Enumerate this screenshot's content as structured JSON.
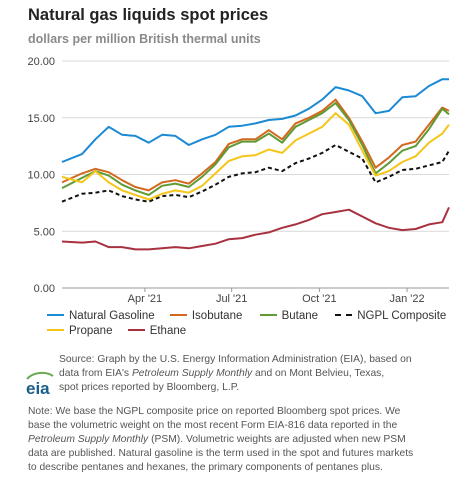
{
  "title": "Natural gas liquids spot prices",
  "subtitle": "dollars per million British thermal units",
  "chart_data": {
    "type": "line",
    "title": "Natural gas liquids spot prices",
    "ylabel": "dollars per million British thermal units",
    "xlabel": "",
    "ylim": [
      0,
      20
    ],
    "xlim": [
      "2021-01-04",
      "2022-02-14"
    ],
    "yticks": [
      "0.00",
      "5.00",
      "10.00",
      "15.00",
      "20.00"
    ],
    "xticks": [
      {
        "date": "2021-04-01",
        "label": "Apr '21"
      },
      {
        "date": "2021-07-01",
        "label": "Jul '21"
      },
      {
        "date": "2021-10-01",
        "label": "Oct '21"
      },
      {
        "date": "2022-01-01",
        "label": "Jan '22"
      }
    ],
    "grid": "horizontal",
    "legend_position": "bottom",
    "series": [
      {
        "name": "Natural Gasoline",
        "color": "#1a8ad4",
        "dash": false,
        "points": [
          [
            "2021-01-04",
            11.1
          ],
          [
            "2021-01-25",
            11.8
          ],
          [
            "2021-02-08",
            13.1
          ],
          [
            "2021-02-22",
            14.2
          ],
          [
            "2021-03-08",
            13.5
          ],
          [
            "2021-03-22",
            13.4
          ],
          [
            "2021-04-05",
            12.8
          ],
          [
            "2021-04-19",
            13.5
          ],
          [
            "2021-05-03",
            13.4
          ],
          [
            "2021-05-17",
            12.6
          ],
          [
            "2021-05-31",
            13.1
          ],
          [
            "2021-06-14",
            13.5
          ],
          [
            "2021-06-28",
            14.2
          ],
          [
            "2021-07-12",
            14.3
          ],
          [
            "2021-07-26",
            14.5
          ],
          [
            "2021-08-09",
            14.8
          ],
          [
            "2021-08-23",
            14.9
          ],
          [
            "2021-09-06",
            15.2
          ],
          [
            "2021-09-20",
            15.8
          ],
          [
            "2021-10-04",
            16.6
          ],
          [
            "2021-10-18",
            17.7
          ],
          [
            "2021-11-01",
            17.4
          ],
          [
            "2021-11-15",
            16.9
          ],
          [
            "2021-11-29",
            15.4
          ],
          [
            "2021-12-13",
            15.6
          ],
          [
            "2021-12-27",
            16.8
          ],
          [
            "2022-01-10",
            16.9
          ],
          [
            "2022-01-24",
            17.8
          ],
          [
            "2022-02-07",
            18.4
          ],
          [
            "2022-02-14",
            18.4
          ]
        ]
      },
      {
        "name": "Isobutane",
        "color": "#d2691e",
        "dash": false,
        "points": [
          [
            "2021-01-04",
            9.3
          ],
          [
            "2021-01-25",
            10.1
          ],
          [
            "2021-02-08",
            10.5
          ],
          [
            "2021-02-22",
            10.2
          ],
          [
            "2021-03-08",
            9.5
          ],
          [
            "2021-03-22",
            8.9
          ],
          [
            "2021-04-05",
            8.6
          ],
          [
            "2021-04-19",
            9.3
          ],
          [
            "2021-05-03",
            9.5
          ],
          [
            "2021-05-17",
            9.2
          ],
          [
            "2021-05-31",
            10.1
          ],
          [
            "2021-06-14",
            11.1
          ],
          [
            "2021-06-28",
            12.7
          ],
          [
            "2021-07-12",
            13.1
          ],
          [
            "2021-07-26",
            13.1
          ],
          [
            "2021-08-09",
            13.9
          ],
          [
            "2021-08-23",
            13.1
          ],
          [
            "2021-09-06",
            14.5
          ],
          [
            "2021-09-20",
            15.0
          ],
          [
            "2021-10-04",
            15.6
          ],
          [
            "2021-10-18",
            16.6
          ],
          [
            "2021-11-01",
            15.0
          ],
          [
            "2021-11-15",
            12.9
          ],
          [
            "2021-11-29",
            10.6
          ],
          [
            "2021-12-13",
            11.5
          ],
          [
            "2021-12-27",
            12.6
          ],
          [
            "2022-01-10",
            12.9
          ],
          [
            "2022-01-24",
            14.4
          ],
          [
            "2022-02-07",
            15.9
          ],
          [
            "2022-02-14",
            15.6
          ]
        ]
      },
      {
        "name": "Butane",
        "color": "#5f9a34",
        "dash": false,
        "points": [
          [
            "2021-01-04",
            8.8
          ],
          [
            "2021-01-25",
            9.7
          ],
          [
            "2021-02-08",
            10.3
          ],
          [
            "2021-02-22",
            9.9
          ],
          [
            "2021-03-08",
            9.1
          ],
          [
            "2021-03-22",
            8.6
          ],
          [
            "2021-04-05",
            8.2
          ],
          [
            "2021-04-19",
            9.0
          ],
          [
            "2021-05-03",
            9.2
          ],
          [
            "2021-05-17",
            8.9
          ],
          [
            "2021-05-31",
            9.8
          ],
          [
            "2021-06-14",
            10.9
          ],
          [
            "2021-06-28",
            12.4
          ],
          [
            "2021-07-12",
            12.9
          ],
          [
            "2021-07-26",
            12.9
          ],
          [
            "2021-08-09",
            13.6
          ],
          [
            "2021-08-23",
            12.8
          ],
          [
            "2021-09-06",
            14.2
          ],
          [
            "2021-09-20",
            14.8
          ],
          [
            "2021-10-04",
            15.4
          ],
          [
            "2021-10-18",
            16.3
          ],
          [
            "2021-11-01",
            14.8
          ],
          [
            "2021-11-15",
            12.6
          ],
          [
            "2021-11-29",
            10.1
          ],
          [
            "2021-12-13",
            11.0
          ],
          [
            "2021-12-27",
            12.1
          ],
          [
            "2022-01-10",
            12.5
          ],
          [
            "2022-01-24",
            14.0
          ],
          [
            "2022-02-07",
            15.8
          ],
          [
            "2022-02-14",
            15.3
          ]
        ]
      },
      {
        "name": "NGPL Composite",
        "color": "#111111",
        "dash": true,
        "points": [
          [
            "2021-01-04",
            7.6
          ],
          [
            "2021-01-25",
            8.3
          ],
          [
            "2021-02-08",
            8.4
          ],
          [
            "2021-02-22",
            8.6
          ],
          [
            "2021-03-08",
            8.1
          ],
          [
            "2021-03-22",
            7.8
          ],
          [
            "2021-04-05",
            7.6
          ],
          [
            "2021-04-19",
            8.1
          ],
          [
            "2021-05-03",
            8.2
          ],
          [
            "2021-05-17",
            8.0
          ],
          [
            "2021-05-31",
            8.5
          ],
          [
            "2021-06-14",
            9.1
          ],
          [
            "2021-06-28",
            9.8
          ],
          [
            "2021-07-12",
            10.1
          ],
          [
            "2021-07-26",
            10.2
          ],
          [
            "2021-08-09",
            10.6
          ],
          [
            "2021-08-23",
            10.3
          ],
          [
            "2021-09-06",
            11.0
          ],
          [
            "2021-09-20",
            11.4
          ],
          [
            "2021-10-04",
            11.9
          ],
          [
            "2021-10-18",
            12.6
          ],
          [
            "2021-11-01",
            12.0
          ],
          [
            "2021-11-15",
            11.4
          ],
          [
            "2021-11-29",
            9.3
          ],
          [
            "2021-12-13",
            9.8
          ],
          [
            "2021-12-27",
            10.4
          ],
          [
            "2022-01-10",
            10.5
          ],
          [
            "2022-01-24",
            10.8
          ],
          [
            "2022-02-07",
            11.1
          ],
          [
            "2022-02-14",
            12.1
          ]
        ]
      },
      {
        "name": "Propane",
        "color": "#f5c518",
        "dash": false,
        "points": [
          [
            "2021-01-04",
            9.8
          ],
          [
            "2021-01-25",
            9.3
          ],
          [
            "2021-02-08",
            10.3
          ],
          [
            "2021-02-22",
            9.3
          ],
          [
            "2021-03-08",
            8.6
          ],
          [
            "2021-03-22",
            8.2
          ],
          [
            "2021-04-05",
            7.8
          ],
          [
            "2021-04-19",
            8.3
          ],
          [
            "2021-05-03",
            8.6
          ],
          [
            "2021-05-17",
            8.4
          ],
          [
            "2021-05-31",
            9.0
          ],
          [
            "2021-06-14",
            10.1
          ],
          [
            "2021-06-28",
            11.2
          ],
          [
            "2021-07-12",
            11.6
          ],
          [
            "2021-07-26",
            11.7
          ],
          [
            "2021-08-09",
            12.2
          ],
          [
            "2021-08-23",
            11.9
          ],
          [
            "2021-09-06",
            13.0
          ],
          [
            "2021-09-20",
            13.6
          ],
          [
            "2021-10-04",
            14.2
          ],
          [
            "2021-10-18",
            15.4
          ],
          [
            "2021-11-01",
            14.4
          ],
          [
            "2021-11-15",
            12.1
          ],
          [
            "2021-11-29",
            9.9
          ],
          [
            "2021-12-13",
            10.3
          ],
          [
            "2021-12-27",
            11.1
          ],
          [
            "2022-01-10",
            11.6
          ],
          [
            "2022-01-24",
            12.8
          ],
          [
            "2022-02-07",
            13.6
          ],
          [
            "2022-02-14",
            14.4
          ]
        ]
      },
      {
        "name": "Ethane",
        "color": "#a8313f",
        "dash": false,
        "points": [
          [
            "2021-01-04",
            4.1
          ],
          [
            "2021-01-25",
            4.0
          ],
          [
            "2021-02-08",
            4.1
          ],
          [
            "2021-02-22",
            3.6
          ],
          [
            "2021-03-08",
            3.6
          ],
          [
            "2021-03-22",
            3.4
          ],
          [
            "2021-04-05",
            3.4
          ],
          [
            "2021-04-19",
            3.5
          ],
          [
            "2021-05-03",
            3.6
          ],
          [
            "2021-05-17",
            3.5
          ],
          [
            "2021-05-31",
            3.7
          ],
          [
            "2021-06-14",
            3.9
          ],
          [
            "2021-06-28",
            4.3
          ],
          [
            "2021-07-12",
            4.4
          ],
          [
            "2021-07-26",
            4.7
          ],
          [
            "2021-08-09",
            4.9
          ],
          [
            "2021-08-23",
            5.3
          ],
          [
            "2021-09-06",
            5.6
          ],
          [
            "2021-09-20",
            6.0
          ],
          [
            "2021-10-04",
            6.5
          ],
          [
            "2021-10-18",
            6.7
          ],
          [
            "2021-11-01",
            6.9
          ],
          [
            "2021-11-15",
            6.3
          ],
          [
            "2021-11-29",
            5.7
          ],
          [
            "2021-12-13",
            5.3
          ],
          [
            "2021-12-27",
            5.1
          ],
          [
            "2022-01-10",
            5.2
          ],
          [
            "2022-01-24",
            5.6
          ],
          [
            "2022-02-07",
            5.8
          ],
          [
            "2022-02-14",
            7.1
          ]
        ]
      }
    ]
  },
  "legend": {
    "row1": [
      "Natural Gasoline",
      "Isobutane",
      "Butane",
      "NGPL Composite"
    ],
    "row2": [
      "Propane",
      "Ethane"
    ]
  },
  "source": {
    "line1": "Source: Graph by the U.S. Energy Information Administration (EIA), based on",
    "line2_pre": "data from EIA's ",
    "line2_italic": "Petroleum Supply Monthly",
    "line2_post": " and on Mont Belvieu, Texas,",
    "line3": "spot prices reported by Bloomberg, L.P."
  },
  "note": {
    "line1": "Note: We base the NGPL composite price on reported Bloomberg spot prices. We",
    "line2": "base the volumetric weight on the most recent Form EIA-816 data reported in the",
    "line3_italic": "Petroleum Supply Monthly",
    "line3_post": " (PSM). Volumetric weights are adjusted when new PSM",
    "line4": "data are published. Natural gasoline is the term used in the spot and futures markets",
    "line5": "to describe pentanes and hexanes, the primary components of pentanes plus."
  },
  "logo": {
    "text": "eia",
    "color": "#1a5e8c",
    "accent": "#6aa84f"
  }
}
